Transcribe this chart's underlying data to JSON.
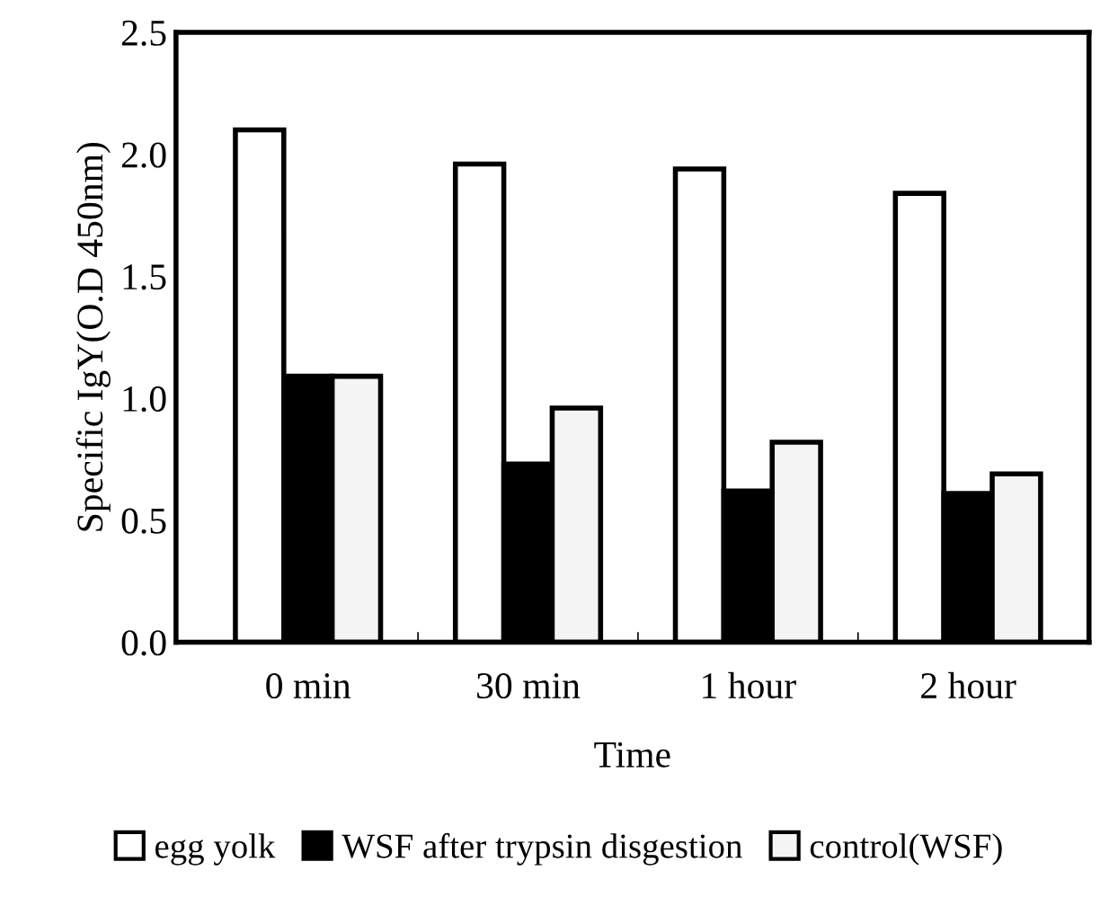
{
  "chart_data": {
    "type": "bar",
    "xlabel": "Time",
    "ylabel": "Specific IgY(O.D 450nm)",
    "categories": [
      "0 min",
      "30 min",
      "1 hour",
      "2 hour"
    ],
    "series": [
      {
        "name": "egg yolk",
        "color": "#ffffff",
        "values": [
          2.1,
          1.96,
          1.94,
          1.84
        ]
      },
      {
        "name": "WSF after trypsin disgestion",
        "color": "#000000",
        "values": [
          1.09,
          0.73,
          0.62,
          0.61
        ]
      },
      {
        "name": "control(WSF)",
        "color": "#f4f4f4",
        "values": [
          1.09,
          0.96,
          0.82,
          0.69
        ]
      }
    ],
    "ylim": [
      0,
      2.5
    ],
    "yticks": [
      {
        "value": 0,
        "label": "0.0"
      },
      {
        "value": 0.5,
        "label": "0.5"
      },
      {
        "value": 1,
        "label": "1.0"
      },
      {
        "value": 1.5,
        "label": "1.5"
      },
      {
        "value": 2,
        "label": "2.0"
      },
      {
        "value": 2.5,
        "label": "2.5"
      }
    ],
    "grid": false,
    "legend": "bottom"
  }
}
